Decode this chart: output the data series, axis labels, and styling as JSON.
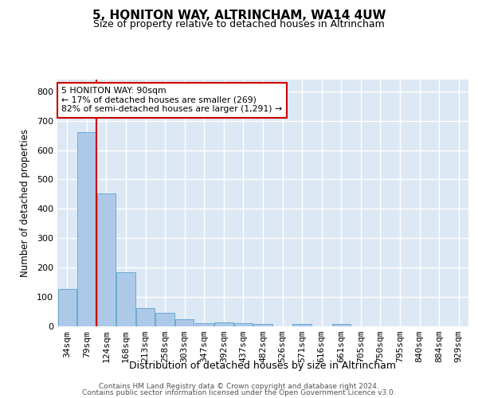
{
  "title": "5, HONITON WAY, ALTRINCHAM, WA14 4UW",
  "subtitle": "Size of property relative to detached houses in Altrincham",
  "xlabel": "Distribution of detached houses by size in Altrincham",
  "ylabel": "Number of detached properties",
  "bar_color": "#adc9e8",
  "bar_edge_color": "#6aaad4",
  "background_color": "#dde8f5",
  "grid_color": "#ffffff",
  "categories": [
    "34sqm",
    "79sqm",
    "124sqm",
    "168sqm",
    "213sqm",
    "258sqm",
    "303sqm",
    "347sqm",
    "392sqm",
    "437sqm",
    "482sqm",
    "526sqm",
    "571sqm",
    "616sqm",
    "661sqm",
    "705sqm",
    "750sqm",
    "795sqm",
    "840sqm",
    "884sqm",
    "929sqm"
  ],
  "values": [
    128,
    660,
    453,
    184,
    63,
    47,
    25,
    11,
    13,
    12,
    8,
    0,
    8,
    0,
    9,
    0,
    0,
    0,
    0,
    0,
    0
  ],
  "ylim": [
    0,
    840
  ],
  "yticks": [
    0,
    100,
    200,
    300,
    400,
    500,
    600,
    700,
    800
  ],
  "property_label": "5 HONITON WAY: 90sqm",
  "pct_smaller": 17,
  "n_smaller": 269,
  "pct_larger_semi": 82,
  "n_larger_semi": 1291,
  "annotation_box_color": "#cc0000",
  "vline_color": "#cc0000",
  "vline_x_index": 1.5,
  "footer1": "Contains HM Land Registry data © Crown copyright and database right 2024.",
  "footer2": "Contains public sector information licensed under the Open Government Licence v3.0."
}
